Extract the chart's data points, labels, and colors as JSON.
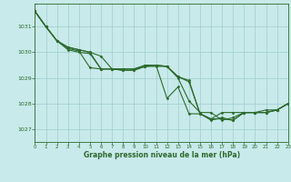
{
  "background_color": "#c8eaea",
  "grid_color": "#a0cccc",
  "line_color": "#2d6a2d",
  "xlabel": "Graphe pression niveau de la mer (hPa)",
  "xlim": [
    0,
    23
  ],
  "ylim": [
    1026.5,
    1031.9
  ],
  "yticks": [
    1027,
    1028,
    1029,
    1030,
    1031
  ],
  "xticks": [
    0,
    1,
    2,
    3,
    4,
    5,
    6,
    7,
    8,
    9,
    10,
    11,
    12,
    13,
    14,
    15,
    16,
    17,
    18,
    19,
    20,
    21,
    22,
    23
  ],
  "series": [
    [
      1031.6,
      1031.0,
      1030.45,
      1030.2,
      1030.1,
      1030.0,
      1029.85,
      1029.35,
      1029.3,
      1029.3,
      1029.45,
      1029.45,
      1029.45,
      1029.0,
      1028.1,
      1027.65,
      1027.65,
      1027.35,
      1027.45,
      1027.65,
      1027.65,
      1027.65,
      1027.75,
      1028.0
    ],
    [
      1031.6,
      1031.0,
      1030.45,
      1030.2,
      1030.1,
      1030.0,
      1029.35,
      1029.35,
      1029.3,
      1029.3,
      1029.45,
      1029.5,
      1028.2,
      1028.65,
      1027.6,
      1027.6,
      1027.35,
      1027.45,
      1027.35,
      1027.65,
      1027.65,
      1027.65,
      1027.75,
      1028.0
    ],
    [
      1031.6,
      1031.0,
      1030.45,
      1030.15,
      1030.05,
      1029.4,
      1029.35,
      1029.35,
      1029.35,
      1029.35,
      1029.5,
      1029.5,
      1029.45,
      1029.05,
      1028.85,
      1027.6,
      1027.4,
      1027.4,
      1027.35,
      1027.65,
      1027.65,
      1027.65,
      1027.75,
      1028.0
    ],
    [
      1031.6,
      1031.0,
      1030.45,
      1030.1,
      1030.0,
      1029.95,
      1029.35,
      1029.35,
      1029.35,
      1029.35,
      1029.45,
      1029.5,
      1029.45,
      1029.05,
      1028.9,
      1027.6,
      1027.4,
      1027.65,
      1027.65,
      1027.65,
      1027.65,
      1027.75,
      1027.75,
      1028.0
    ]
  ]
}
